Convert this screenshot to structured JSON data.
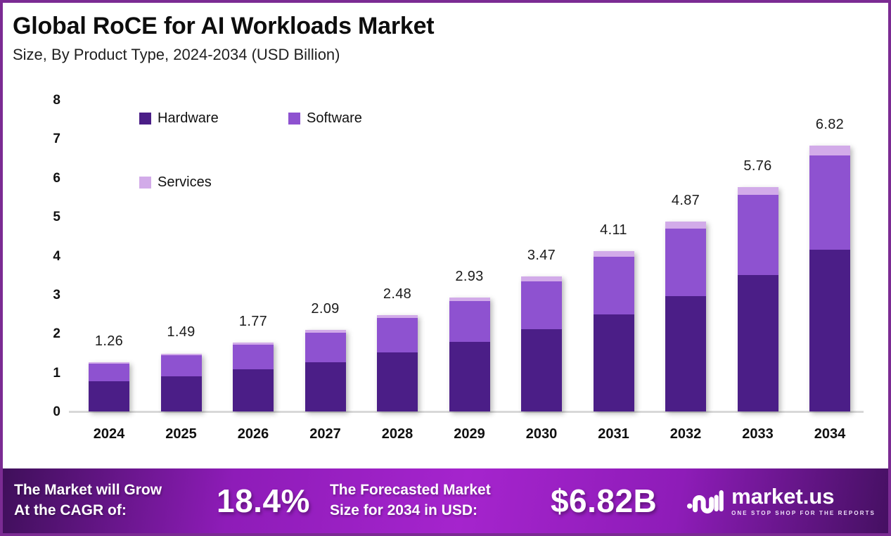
{
  "page": {
    "border_color": "#7b2b93",
    "background": "#ffffff"
  },
  "header": {
    "title": "Global RoCE for AI Workloads Market",
    "subtitle": "Size, By Product Type, 2024-2034 (USD Billion)"
  },
  "chart_data": {
    "type": "bar",
    "stacked": true,
    "title": "Global RoCE for AI Workloads Market Size, By Product Type, 2024-2034 (USD Billion)",
    "xlabel": "",
    "ylabel": "",
    "ylim": [
      0,
      8
    ],
    "yticks": [
      0,
      1,
      2,
      3,
      4,
      5,
      6,
      7,
      8
    ],
    "grid": false,
    "legend_position": "top-left-inside",
    "categories": [
      "2024",
      "2025",
      "2026",
      "2027",
      "2028",
      "2029",
      "2030",
      "2031",
      "2032",
      "2033",
      "2034"
    ],
    "series": [
      {
        "name": "Hardware",
        "color": "#4b1e87",
        "values": [
          0.77,
          0.91,
          1.08,
          1.27,
          1.51,
          1.79,
          2.11,
          2.5,
          2.96,
          3.51,
          4.16
        ]
      },
      {
        "name": "Software",
        "color": "#8e52d0",
        "values": [
          0.45,
          0.53,
          0.63,
          0.75,
          0.89,
          1.04,
          1.24,
          1.47,
          1.74,
          2.05,
          2.42
        ]
      },
      {
        "name": "Services",
        "color": "#d2abe9",
        "values": [
          0.04,
          0.05,
          0.06,
          0.07,
          0.08,
          0.1,
          0.12,
          0.14,
          0.17,
          0.2,
          0.24
        ]
      }
    ],
    "totals": [
      1.26,
      1.49,
      1.77,
      2.09,
      2.48,
      2.93,
      3.47,
      4.11,
      4.87,
      5.76,
      6.82
    ],
    "total_labels": [
      "1.26",
      "1.49",
      "1.77",
      "2.09",
      "2.48",
      "2.93",
      "3.47",
      "4.11",
      "4.87",
      "5.76",
      "6.82"
    ]
  },
  "footer": {
    "cagr_label_line1": "The Market will Grow",
    "cagr_label_line2": "At the CAGR of:",
    "cagr_value": "18.4%",
    "forecast_label_line1": "The Forecasted Market",
    "forecast_label_line2": "Size for 2034 in USD:",
    "forecast_value": "$6.82B",
    "brand": {
      "name": "market.us",
      "tagline": "ONE STOP SHOP FOR THE REPORTS"
    }
  }
}
